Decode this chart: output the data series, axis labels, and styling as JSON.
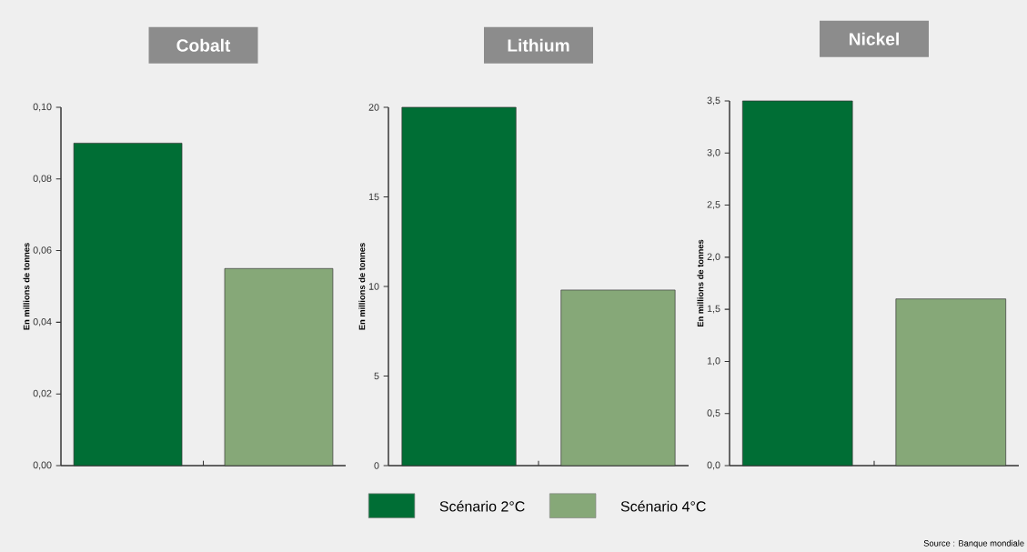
{
  "chart_data": [
    {
      "type": "bar",
      "title": "Cobalt",
      "ylabel": "En millions de tonnes",
      "categories": [
        null
      ],
      "series": [
        {
          "color": "#006e35",
          "values": [
            0.09
          ]
        },
        {
          "color": "#86a878",
          "values": [
            0.055
          ]
        }
      ],
      "ylim": [
        0,
        0.1
      ],
      "yticks": [
        {
          "value": 0,
          "label": "0,00"
        },
        {
          "value": 0.02,
          "label": "0,02"
        },
        {
          "value": 0.04,
          "label": "0,04"
        },
        {
          "value": 0.06,
          "label": "0,06"
        },
        {
          "value": 0.08,
          "label": "0,08"
        },
        {
          "value": 0.1,
          "label": "0,10"
        }
      ]
    },
    {
      "type": "bar",
      "title": "Lithium",
      "ylabel": "En millions de tonnes",
      "categories": [
        null
      ],
      "series": [
        {
          "name": "Scénario 2°C",
          "color": "#006e35",
          "values": [
            20
          ]
        },
        {
          "name": "Scénario 4°C",
          "color": "#86a878",
          "values": [
            9.8
          ]
        }
      ],
      "ylim": [
        0,
        20
      ],
      "yticks": [
        0,
        5,
        10,
        15,
        20
      ],
      "legend": "bottom"
    },
    {
      "type": "bar",
      "title": "Nickel",
      "ylabel": "En millions de tonnes",
      "categories": [
        null
      ],
      "series": [
        {
          "color": "#006e35",
          "values": [
            3.5
          ]
        },
        {
          "color": "#86a878",
          "values": [
            1.6
          ]
        }
      ],
      "ylim": [
        0,
        3.5
      ],
      "yticks": [
        {
          "value": 0,
          "label": "0,0"
        },
        {
          "value": 0.5,
          "label": "0,5"
        },
        {
          "value": 1,
          "label": "1,0"
        },
        {
          "value": 1.5,
          "label": "1,5"
        },
        {
          "value": 2,
          "label": "2,0"
        },
        {
          "value": 2.5,
          "label": "2,5"
        },
        {
          "value": 3,
          "label": "3,0"
        },
        {
          "value": 3.5,
          "label": "3,5"
        }
      ],
      "annotations": [
        "Source : Banque mondiale"
      ]
    }
  ]
}
